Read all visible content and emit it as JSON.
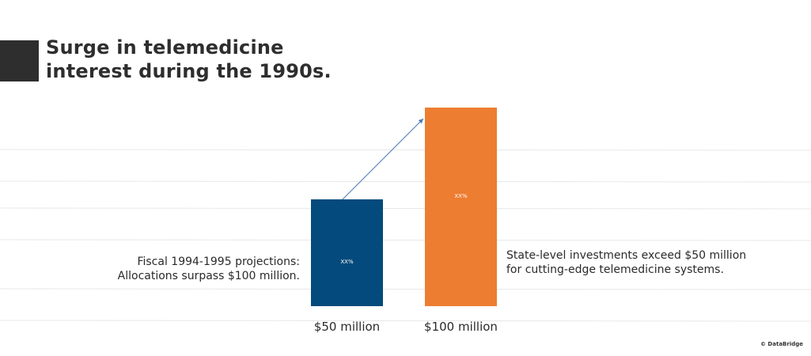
{
  "title": "Surge in telemedicine interest during the 1990s.",
  "title_lines": [
    "Surge in telemedicine",
    "interest during the 1990s."
  ],
  "chart_data": {
    "type": "bar",
    "title": "Surge in telemedicine interest during the 1990s.",
    "categories": [
      "$50 million",
      "$100 million"
    ],
    "values": [
      50,
      100
    ],
    "bar_labels": [
      "XX%",
      "XX%"
    ],
    "colors": [
      "#044a7c",
      "#ed7d31"
    ],
    "arrow_color": "#4a7ab5",
    "xlabel": "",
    "ylabel": "",
    "ylim": [
      0,
      100
    ],
    "grid": true,
    "annotations": [
      "Fiscal 1994-1995 projections: Allocations surpass $100 million.",
      "State-level investments exceed $50 million for cutting-edge telemedicine systems."
    ]
  },
  "notes": {
    "left": "Fiscal 1994-1995 projections: Allocations surpass $100 million.",
    "right": "State-level investments exceed $50 million for cutting-edge telemedicine systems."
  },
  "copyright": "© DataBridge"
}
